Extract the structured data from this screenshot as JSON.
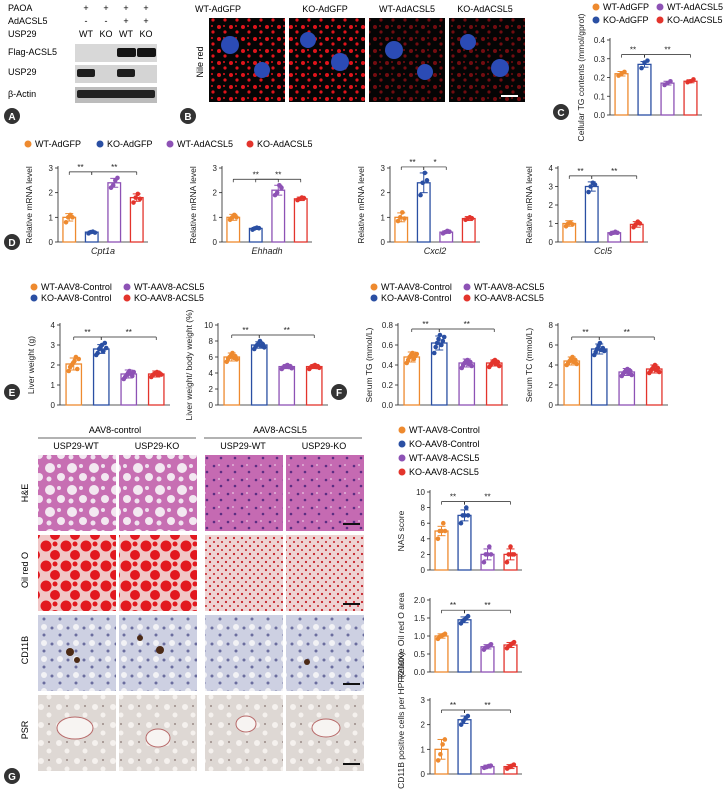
{
  "colors": {
    "wt_gfp": "#ee8a2f",
    "ko_gfp": "#2a4fa3",
    "wt_acsl5": "#8d52b5",
    "ko_acsl5": "#e3342c"
  },
  "panels": {
    "A": "A",
    "B": "B",
    "C": "C",
    "D": "D",
    "E": "E",
    "F": "F",
    "G": "G"
  },
  "blot": {
    "row_labels": [
      "PAOA",
      "AdACSL5",
      "USP29"
    ],
    "paoa": [
      "+",
      "+",
      "+",
      "+"
    ],
    "adacsl5": [
      "-",
      "-",
      "+",
      "+"
    ],
    "usp29": [
      "WT",
      "KO",
      "WT",
      "KO"
    ],
    "bands": [
      "Flag-ACSL5",
      "USP29",
      "β-Actin"
    ]
  },
  "micro_b": {
    "headers": [
      "WT-AdGFP",
      "KO-AdGFP",
      "WT-AdACSL5",
      "KO-AdACSL5"
    ],
    "stain": "Nile red"
  },
  "legend_ad": [
    "WT-AdGFP",
    "KO-AdGFP",
    "WT-AdACSL5",
    "KO-AdACSL5"
  ],
  "legend_aav": [
    "WT-AAV8-Control",
    "KO-AAV8-Control",
    "WT-AAV8-ACSL5",
    "KO-AAV8-ACSL5"
  ],
  "histo": {
    "groups": [
      "AAV8-control",
      "AAV8-ACSL5"
    ],
    "cols": [
      "USP29-WT",
      "USP29-KO",
      "USP29-WT",
      "USP29-KO"
    ],
    "rows": [
      "H&E",
      "Oil red O",
      "CD11B",
      "PSR"
    ]
  },
  "chart_data": [
    {
      "id": "C",
      "type": "bar",
      "ylabel": "Cellular TG contents (mmol/gprot)",
      "ylim": [
        0,
        0.4
      ],
      "yticks": [
        0,
        0.1,
        0.2,
        0.3,
        0.4
      ],
      "ytick_labels": [
        "0.0",
        "0.1",
        "0.2",
        "0.3",
        "0.4"
      ],
      "values": [
        0.22,
        0.27,
        0.17,
        0.18
      ],
      "errors": [
        0.012,
        0.015,
        0.01,
        0.008
      ],
      "points": [
        [
          0.21,
          0.22,
          0.23
        ],
        [
          0.25,
          0.28,
          0.29
        ],
        [
          0.16,
          0.17,
          0.18
        ],
        [
          0.175,
          0.18,
          0.19
        ]
      ],
      "sig": [
        {
          "from": 0,
          "to": 1,
          "label": "**"
        },
        {
          "from": 1,
          "to": 3,
          "label": "**"
        }
      ]
    },
    {
      "id": "D1",
      "type": "bar",
      "ylabel": "Relative mRNA level",
      "xlabel": "Cpt1a",
      "ylim": [
        0,
        3
      ],
      "yticks": [
        0,
        1,
        2,
        3
      ],
      "ytick_labels": [
        "0",
        "1",
        "2",
        "3"
      ],
      "values": [
        1.0,
        0.4,
        2.4,
        1.8
      ],
      "errors": [
        0.15,
        0.04,
        0.18,
        0.15
      ],
      "points": [
        [
          0.8,
          1.0,
          1.1,
          1.0
        ],
        [
          0.35,
          0.4,
          0.42,
          0.38
        ],
        [
          2.2,
          2.3,
          2.5,
          2.6
        ],
        [
          1.6,
          1.8,
          1.95,
          1.75
        ]
      ],
      "sig": [
        {
          "from": 0,
          "to": 1,
          "label": "**"
        },
        {
          "from": 1,
          "to": 3,
          "label": "**"
        }
      ]
    },
    {
      "id": "D2",
      "type": "bar",
      "ylabel": "Relative mRNA level",
      "xlabel": "Ehhadh",
      "ylim": [
        0,
        3
      ],
      "yticks": [
        0,
        1,
        2,
        3
      ],
      "ytick_labels": [
        "0",
        "1",
        "2",
        "3"
      ],
      "values": [
        1.0,
        0.55,
        2.1,
        1.75
      ],
      "errors": [
        0.12,
        0.04,
        0.2,
        0.07
      ],
      "points": [
        [
          0.9,
          1.0,
          1.1,
          1.0
        ],
        [
          0.5,
          0.55,
          0.58,
          0.56
        ],
        [
          1.9,
          2.0,
          2.3,
          2.2
        ],
        [
          1.7,
          1.75,
          1.8,
          1.78
        ]
      ],
      "sig": [
        {
          "from": 0,
          "to": 2,
          "label": "**"
        },
        {
          "from": 1,
          "to": 3,
          "label": "**"
        }
      ]
    },
    {
      "id": "D3",
      "type": "bar",
      "ylabel": "Relative mRNA level",
      "xlabel": "Cxcl2",
      "ylim": [
        0,
        3
      ],
      "yticks": [
        0,
        1,
        2,
        3
      ],
      "ytick_labels": [
        "0",
        "1",
        "2",
        "3"
      ],
      "values": [
        1.0,
        2.4,
        0.4,
        0.95
      ],
      "errors": [
        0.18,
        0.4,
        0.05,
        0.08
      ],
      "points": [
        [
          0.85,
          1.0,
          1.2,
          0.95
        ],
        [
          1.9,
          2.4,
          2.8,
          2.5
        ],
        [
          0.35,
          0.4,
          0.45,
          0.42
        ],
        [
          0.9,
          0.95,
          1.0,
          0.96
        ]
      ],
      "sig": [
        {
          "from": 0,
          "to": 1,
          "label": "**"
        },
        {
          "from": 1,
          "to": 2,
          "label": "*"
        }
      ]
    },
    {
      "id": "D4",
      "type": "bar",
      "ylabel": "Relative mRNA level",
      "xlabel": "Ccl5",
      "ylim": [
        0,
        4
      ],
      "yticks": [
        0,
        1,
        2,
        3,
        4
      ],
      "ytick_labels": [
        "0",
        "1",
        "2",
        "3",
        "4"
      ],
      "values": [
        1.0,
        3.0,
        0.5,
        0.95
      ],
      "errors": [
        0.15,
        0.25,
        0.08,
        0.15
      ],
      "points": [
        [
          0.85,
          1.0,
          1.05,
          0.95
        ],
        [
          2.7,
          3.0,
          3.2,
          3.1
        ],
        [
          0.45,
          0.5,
          0.55,
          0.5
        ],
        [
          0.8,
          0.95,
          1.1,
          1.0
        ]
      ],
      "sig": [
        {
          "from": 0,
          "to": 1,
          "label": "**"
        },
        {
          "from": 1,
          "to": 3,
          "label": "**"
        }
      ]
    },
    {
      "id": "E1",
      "type": "bar",
      "ylabel": "Liver weight (g)",
      "ylim": [
        0,
        4
      ],
      "yticks": [
        0,
        1,
        2,
        3,
        4
      ],
      "ytick_labels": [
        "0",
        "1",
        "2",
        "3",
        "4"
      ],
      "values": [
        2.05,
        2.8,
        1.55,
        1.55
      ],
      "errors": [
        0.3,
        0.22,
        0.2,
        0.15
      ],
      "points": [
        [
          1.7,
          1.9,
          2.0,
          2.1,
          2.2,
          2.4,
          1.8,
          2.3
        ],
        [
          2.5,
          2.6,
          2.8,
          2.9,
          3.0,
          2.7,
          3.1,
          2.85
        ],
        [
          1.3,
          1.4,
          1.5,
          1.6,
          1.7,
          1.55,
          1.45,
          1.65
        ],
        [
          1.4,
          1.5,
          1.55,
          1.6,
          1.65,
          1.5,
          1.58,
          1.52
        ]
      ],
      "sig": [
        {
          "from": 0,
          "to": 1,
          "label": "**"
        },
        {
          "from": 1,
          "to": 3,
          "label": "**"
        }
      ]
    },
    {
      "id": "E2",
      "type": "bar",
      "ylabel": "Liver weight/ body weight (%)",
      "ylim": [
        0,
        10
      ],
      "yticks": [
        0,
        2,
        4,
        6,
        8,
        10
      ],
      "ytick_labels": [
        "0",
        "2",
        "4",
        "6",
        "8",
        "10"
      ],
      "values": [
        6.0,
        7.5,
        4.8,
        4.8
      ],
      "errors": [
        0.5,
        0.4,
        0.25,
        0.25
      ],
      "points": [
        [
          5.4,
          5.8,
          6.0,
          6.2,
          6.5,
          5.9,
          6.1,
          5.7
        ],
        [
          7.0,
          7.3,
          7.5,
          7.7,
          8.0,
          7.4,
          7.6,
          7.2
        ],
        [
          4.5,
          4.7,
          4.8,
          4.9,
          5.0,
          4.75,
          4.85,
          4.6
        ],
        [
          4.5,
          4.7,
          4.8,
          4.9,
          5.0,
          4.75,
          4.85,
          4.65
        ]
      ],
      "sig": [
        {
          "from": 0,
          "to": 1,
          "label": "**"
        },
        {
          "from": 1,
          "to": 3,
          "label": "**"
        }
      ]
    },
    {
      "id": "F1",
      "type": "bar",
      "ylabel": "Serum TG (mmol/L)",
      "ylim": [
        0,
        0.8
      ],
      "yticks": [
        0,
        0.2,
        0.4,
        0.6,
        0.8
      ],
      "ytick_labels": [
        "0.0",
        "0.2",
        "0.4",
        "0.6",
        "0.8"
      ],
      "values": [
        0.48,
        0.62,
        0.42,
        0.42
      ],
      "errors": [
        0.05,
        0.07,
        0.04,
        0.03
      ],
      "points": [
        [
          0.42,
          0.45,
          0.48,
          0.5,
          0.52,
          0.46,
          0.49,
          0.51
        ],
        [
          0.52,
          0.58,
          0.62,
          0.66,
          0.7,
          0.6,
          0.64,
          0.68
        ],
        [
          0.37,
          0.4,
          0.42,
          0.44,
          0.45,
          0.41,
          0.43,
          0.39
        ],
        [
          0.38,
          0.4,
          0.42,
          0.44,
          0.45,
          0.41,
          0.43,
          0.39
        ]
      ],
      "sig": [
        {
          "from": 0,
          "to": 1,
          "label": "**"
        },
        {
          "from": 1,
          "to": 3,
          "label": "**"
        }
      ]
    },
    {
      "id": "F2",
      "type": "bar",
      "ylabel": "Serum TC (mmol/L)",
      "ylim": [
        0,
        8
      ],
      "yticks": [
        0,
        2,
        4,
        6,
        8
      ],
      "ytick_labels": [
        "0",
        "2",
        "4",
        "6",
        "8"
      ],
      "values": [
        4.4,
        5.6,
        3.3,
        3.6
      ],
      "errors": [
        0.4,
        0.5,
        0.35,
        0.4
      ],
      "points": [
        [
          4.0,
          4.2,
          4.4,
          4.6,
          4.8,
          4.3,
          4.5,
          4.1
        ],
        [
          5.0,
          5.3,
          5.6,
          5.9,
          6.2,
          5.5,
          5.7,
          5.4
        ],
        [
          2.9,
          3.1,
          3.3,
          3.5,
          3.6,
          3.2,
          3.4,
          3.0
        ],
        [
          3.2,
          3.4,
          3.6,
          3.8,
          4.0,
          3.5,
          3.7,
          3.3
        ]
      ],
      "sig": [
        {
          "from": 0,
          "to": 1,
          "label": "**"
        },
        {
          "from": 1,
          "to": 3,
          "label": "**"
        }
      ]
    },
    {
      "id": "G1",
      "type": "bar",
      "ylabel": "NAS score",
      "ylim": [
        0,
        10
      ],
      "yticks": [
        0,
        2,
        4,
        6,
        8,
        10
      ],
      "ytick_labels": [
        "0",
        "2",
        "4",
        "6",
        "8",
        "10"
      ],
      "values": [
        5.0,
        7.0,
        2.0,
        2.0
      ],
      "errors": [
        0.6,
        0.7,
        0.7,
        0.7
      ],
      "points": [
        [
          4.0,
          5.0,
          5.0,
          6.0,
          5.0
        ],
        [
          6.0,
          7.0,
          7.0,
          8.0,
          7.0
        ],
        [
          1.0,
          2.0,
          2.0,
          3.0,
          2.0
        ],
        [
          1.0,
          2.0,
          3.0,
          2.0,
          2.0
        ]
      ],
      "sig": [
        {
          "from": 0,
          "to": 1,
          "label": "**"
        },
        {
          "from": 1,
          "to": 3,
          "label": "**"
        }
      ]
    },
    {
      "id": "G2",
      "type": "bar",
      "ylabel": "Relative Oil red O area",
      "ylim": [
        0,
        2
      ],
      "yticks": [
        0,
        0.5,
        1,
        1.5,
        2
      ],
      "ytick_labels": [
        "0.0",
        "0.5",
        "1.0",
        "1.5",
        "2.0"
      ],
      "values": [
        1.0,
        1.45,
        0.7,
        0.75
      ],
      "errors": [
        0.06,
        0.08,
        0.06,
        0.07
      ],
      "points": [
        [
          0.92,
          0.98,
          1.0,
          1.03,
          1.06
        ],
        [
          1.35,
          1.42,
          1.45,
          1.5,
          1.55
        ],
        [
          0.62,
          0.68,
          0.7,
          0.73,
          0.77
        ],
        [
          0.66,
          0.72,
          0.75,
          0.79,
          0.83
        ]
      ],
      "sig": [
        {
          "from": 0,
          "to": 1,
          "label": "**"
        },
        {
          "from": 1,
          "to": 3,
          "label": "**"
        }
      ]
    },
    {
      "id": "G3",
      "type": "bar",
      "ylabel": "Relative CD11B positive cells per HPF(200X)",
      "ylim": [
        0,
        3
      ],
      "yticks": [
        0,
        1,
        2,
        3
      ],
      "ytick_labels": [
        "0",
        "1",
        "2",
        "3"
      ],
      "values": [
        1.0,
        2.2,
        0.3,
        0.3
      ],
      "errors": [
        0.4,
        0.15,
        0.06,
        0.08
      ],
      "points": [
        [
          0.55,
          0.8,
          1.2,
          1.4
        ],
        [
          2.0,
          2.15,
          2.25,
          2.35
        ],
        [
          0.25,
          0.28,
          0.32,
          0.34
        ],
        [
          0.22,
          0.28,
          0.33,
          0.38
        ]
      ],
      "sig": [
        {
          "from": 0,
          "to": 1,
          "label": "**"
        },
        {
          "from": 1,
          "to": 3,
          "label": "**"
        }
      ]
    }
  ]
}
